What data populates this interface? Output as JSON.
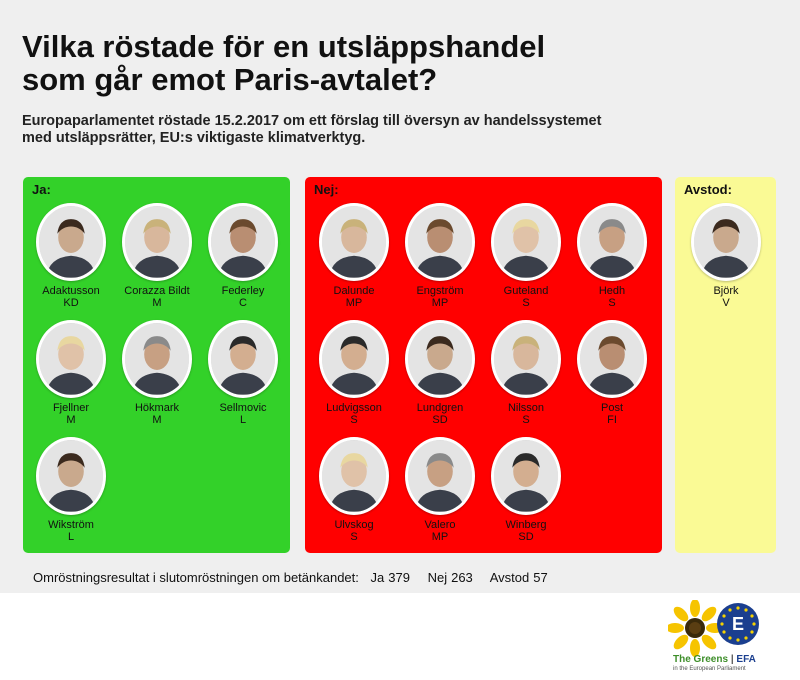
{
  "header": {
    "title_line1": "Vilka röstade för en utsläppshandel",
    "title_line2": "som går emot Paris-avtalet?",
    "subtitle_line1": "Europaparlamentet röstade 15.2.2017 om ett förslag till översyn av handelssystemet",
    "subtitle_line2": "med utsläppsrätter, EU:s viktigaste klimatverktyg."
  },
  "groups": {
    "ja": {
      "label": "Ja:",
      "color": "#33d129",
      "members": [
        {
          "name": "Adaktusson",
          "party": "KD"
        },
        {
          "name": "Corazza Bildt",
          "party": "M"
        },
        {
          "name": "Federley",
          "party": "C"
        },
        {
          "name": "Fjellner",
          "party": "M"
        },
        {
          "name": "Hökmark",
          "party": "M"
        },
        {
          "name": "Sellmovic",
          "party": "L"
        },
        {
          "name": "Wikström",
          "party": "L"
        }
      ]
    },
    "nej": {
      "label": "Nej:",
      "color": "#ff0000",
      "members": [
        {
          "name": "Dalunde",
          "party": "MP"
        },
        {
          "name": "Engström",
          "party": "MP"
        },
        {
          "name": "Guteland",
          "party": "S"
        },
        {
          "name": "Hedh",
          "party": "S"
        },
        {
          "name": "Ludvigsson",
          "party": "S"
        },
        {
          "name": "Lundgren",
          "party": "SD"
        },
        {
          "name": "Nilsson",
          "party": "S"
        },
        {
          "name": "Post",
          "party": "FI"
        },
        {
          "name": "Ulvskog",
          "party": "S"
        },
        {
          "name": "Valero",
          "party": "MP"
        },
        {
          "name": "Winberg",
          "party": "SD"
        }
      ]
    },
    "avstod": {
      "label": "Avstod:",
      "color": "#fafa95",
      "members": [
        {
          "name": "Björk",
          "party": "V"
        }
      ]
    }
  },
  "result": {
    "label": "Omröstningsresultat i slutomröstningen om betänkandet:",
    "ja_label": "Ja",
    "ja_value": "379",
    "nej_label": "Nej",
    "nej_value": "263",
    "avstod_label": "Avstod",
    "avstod_value": "57"
  },
  "logo": {
    "name_greens": "The Greens",
    "name_efa": "EFA",
    "separator": "|",
    "subtitle": "in the European Parliament",
    "badge_text": "E"
  }
}
